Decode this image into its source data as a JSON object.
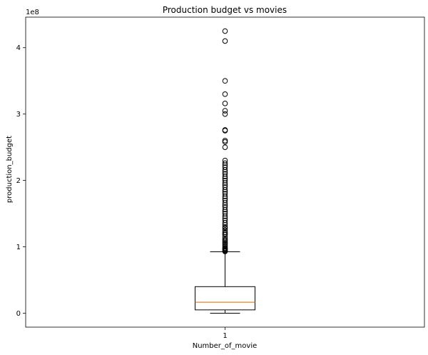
{
  "chart_data": {
    "type": "box",
    "title": "Production budget vs movies",
    "xlabel": "Number_of_movie",
    "ylabel": "production_budget",
    "y_offset_label": "1e8",
    "ylim": [
      -0.21,
      4.46
    ],
    "yticks": [
      0,
      1,
      2,
      3,
      4
    ],
    "xticks": [
      "1"
    ],
    "grid": false,
    "box": {
      "category": "1",
      "whisker_low": 0.0,
      "q1": 0.05,
      "median": 0.165,
      "q3": 0.4,
      "whisker_high": 0.925,
      "outliers": [
        0.93,
        0.94,
        0.95,
        0.96,
        0.97,
        0.98,
        1.0,
        1.02,
        1.04,
        1.06,
        1.08,
        1.1,
        1.12,
        1.15,
        1.18,
        1.2,
        1.22,
        1.25,
        1.28,
        1.3,
        1.33,
        1.36,
        1.4,
        1.43,
        1.46,
        1.5,
        1.53,
        1.56,
        1.6,
        1.63,
        1.66,
        1.7,
        1.73,
        1.76,
        1.8,
        1.83,
        1.86,
        1.9,
        1.93,
        1.96,
        2.0,
        2.03,
        2.06,
        2.1,
        2.13,
        2.16,
        2.2,
        2.23,
        2.26,
        2.3,
        2.5,
        2.58,
        2.6,
        2.75,
        2.76,
        3.0,
        3.05,
        3.16,
        3.3,
        3.5,
        4.1,
        4.25
      ]
    },
    "colors": {
      "median": "#ff7f0e",
      "box": "#000000",
      "outlier": "#000000"
    }
  }
}
